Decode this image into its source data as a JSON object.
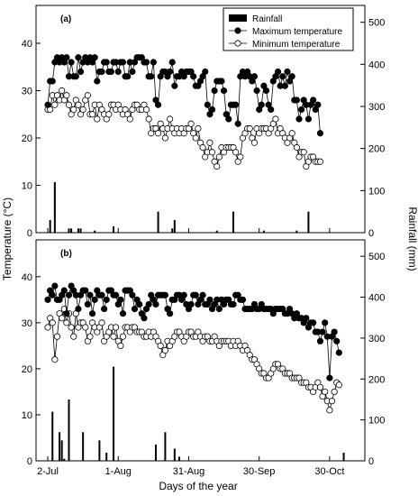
{
  "chart_data": {
    "type": "line",
    "shared_x": {
      "label": "Days of the year",
      "ticks": [
        "2-Jul",
        "1-Aug",
        "31-Aug",
        "30-Sep",
        "30-Oct"
      ],
      "tick_days": [
        0,
        30,
        60,
        90,
        120
      ],
      "range_days": [
        -5,
        135
      ]
    },
    "y_left": {
      "label": "Temperature (°C)",
      "range": [
        0,
        48
      ],
      "ticks": [
        0,
        10,
        20,
        30,
        40
      ]
    },
    "y_right": {
      "label": "Rainfall (mm)",
      "range": [
        0,
        540
      ],
      "ticks": [
        0,
        100,
        200,
        300,
        400,
        500
      ]
    },
    "legend": {
      "placement": "top-right",
      "entries": [
        {
          "name": "Rainfall",
          "marker": "bar"
        },
        {
          "name": "Maximum temperature",
          "marker": "filled-circle"
        },
        {
          "name": "Minimum temperature",
          "marker": "open-circle"
        }
      ]
    },
    "panels": [
      {
        "label": "(a)",
        "series": [
          {
            "name": "Maximum temperature",
            "values": [
              27.0,
              32.0,
              32.0,
              36.0,
              37.0,
              36.0,
              37.0,
              36.0,
              37.0,
              33.0,
              36.0,
              33.0,
              33.0,
              37.0,
              34.0,
              36.0,
              37.0,
              36.0,
              37.0,
              36.0,
              37.0,
              32.0,
              34.0,
              34.0,
              36.0,
              36.0,
              34.0,
              34.0,
              36.0,
              36.0,
              34.0,
              36.0,
              36.0,
              33.0,
              33.0,
              36.0,
              34.0,
              36.0,
              37.0,
              37.0,
              37.0,
              36.0,
              36.0,
              33.0,
              33.0,
              36.0,
              28.0,
              27.0,
              33.0,
              34.0,
              34.0,
              33.0,
              34.0,
              36.0,
              31.0,
              33.0,
              33.0,
              34.0,
              33.0,
              34.0,
              34.0,
              34.0,
              33.0,
              31.0,
              31.0,
              32.0,
              33.0,
              34.0,
              27.0,
              25.0,
              26.0,
              30.0,
              32.0,
              32.0,
              32.0,
              30.0,
              25.0,
              24.0,
              27.0,
              27.0,
              27.0,
              23.0,
              33.0,
              34.0,
              33.0,
              34.0,
              33.0,
              32.0,
              33.0,
              30.0,
              26.0,
              27.0,
              31.0,
              30.0,
              27.0,
              26.0,
              32.0,
              33.0,
              34.0,
              31.0,
              33.0,
              31.0,
              34.0,
              32.0,
              33.0,
              28.0,
              28.0,
              24.0,
              26.0,
              28.0,
              27.0,
              24.0,
              27.0,
              28.0,
              26.0,
              27.0,
              21.0
            ]
          },
          {
            "name": "Minimum temperature",
            "values": [
              26.0,
              26.0,
              29.0,
              27.0,
              29.0,
              28.0,
              30.0,
              28.0,
              29.0,
              27.0,
              25.0,
              26.0,
              28.0,
              27.0,
              25.0,
              26.0,
              28.0,
              29.0,
              25.0,
              25.0,
              27.0,
              24.0,
              27.0,
              26.0,
              25.0,
              24.0,
              25.0,
              27.0,
              27.0,
              26.0,
              27.0,
              26.0,
              25.0,
              26.0,
              25.0,
              24.0,
              26.0,
              27.0,
              27.0,
              26.0,
              26.0,
              27.0,
              26.0,
              24.0,
              21.0,
              22.0,
              22.0,
              21.0,
              23.0,
              22.0,
              20.0,
              22.0,
              24.0,
              22.0,
              21.0,
              22.0,
              21.0,
              22.0,
              21.0,
              22.0,
              22.0,
              23.0,
              21.0,
              20.0,
              22.0,
              19.0,
              18.0,
              16.0,
              17.0,
              19.0,
              17.0,
              15.0,
              14.0,
              16.0,
              18.0,
              17.0,
              18.0,
              18.0,
              18.0,
              18.0,
              17.0,
              15.0,
              16.0,
              20.0,
              21.0,
              22.0,
              22.0,
              20.0,
              19.0,
              22.0,
              21.0,
              22.0,
              22.0,
              22.0,
              21.0,
              22.0,
              23.0,
              24.0,
              21.0,
              22.0,
              21.0,
              20.0,
              19.0,
              20.0,
              21.0,
              19.0,
              18.0,
              16.0,
              17.0,
              17.0,
              14.0,
              15.0,
              16.0,
              16.0,
              15.0,
              15.0,
              15.0
            ]
          },
          {
            "name": "Rainfall",
            "bars": [
              {
                "day": 1,
                "value": 30
              },
              {
                "day": 3,
                "value": 120
              },
              {
                "day": 9,
                "value": 10
              },
              {
                "day": 10,
                "value": 10
              },
              {
                "day": 13,
                "value": 10
              },
              {
                "day": 14,
                "value": 10
              },
              {
                "day": 20,
                "value": 5
              },
              {
                "day": 28,
                "value": 15
              },
              {
                "day": 47,
                "value": 50
              },
              {
                "day": 53,
                "value": 10
              },
              {
                "day": 54,
                "value": 30
              },
              {
                "day": 72,
                "value": 5
              },
              {
                "day": 79,
                "value": 50
              },
              {
                "day": 92,
                "value": 5
              },
              {
                "day": 106,
                "value": 5
              },
              {
                "day": 111,
                "value": 50
              }
            ]
          }
        ]
      },
      {
        "label": "(b)",
        "series": [
          {
            "name": "Maximum temperature",
            "values": [
              35.0,
              37.0,
              36.0,
              38.0,
              35.0,
              35.0,
              36.0,
              37.0,
              32.0,
              36.0,
              38.0,
              37.0,
              36.0,
              33.0,
              36.0,
              37.0,
              37.0,
              34.0,
              36.0,
              32.0,
              35.0,
              37.0,
              36.0,
              36.0,
              33.0,
              35.0,
              37.0,
              37.0,
              36.0,
              36.0,
              34.0,
              35.0,
              32.0,
              37.0,
              37.0,
              37.0,
              36.0,
              33.0,
              35.0,
              34.0,
              32.0,
              31.0,
              33.0,
              34.0,
              36.0,
              35.0,
              34.0,
              36.0,
              36.0,
              36.0,
              36.0,
              33.0,
              32.0,
              35.0,
              35.0,
              36.0,
              36.0,
              35.0,
              36.0,
              34.0,
              33.0,
              34.0,
              36.0,
              36.0,
              34.0,
              35.0,
              36.0,
              34.0,
              34.0,
              35.0,
              33.0,
              34.0,
              35.0,
              33.0,
              35.0,
              34.0,
              35.0,
              35.0,
              34.0,
              34.0,
              36.0,
              36.0,
              35.0,
              35.0,
              33.0,
              33.0,
              33.0,
              33.0,
              34.0,
              33.0,
              33.0,
              34.0,
              33.0,
              33.0,
              33.0,
              33.0,
              32.0,
              33.0,
              33.0,
              33.0,
              33.0,
              32.0,
              32.0,
              33.0,
              32.0,
              31.0,
              32.0,
              31.0,
              31.0,
              30.0,
              31.0,
              29.0,
              30.0,
              30.0,
              28.0,
              28.0,
              26.0,
              28.0,
              30.0,
              27.0,
              18.0,
              27.0,
              28.0,
              26.0,
              23.5
            ]
          },
          {
            "name": "Minimum temperature",
            "values": [
              29.0,
              31.0,
              30.0,
              22.0,
              27.0,
              32.0,
              31.0,
              33.0,
              30.0,
              32.0,
              29.0,
              27.0,
              32.0,
              29.0,
              30.0,
              30.0,
              29.0,
              26.0,
              27.0,
              30.0,
              29.0,
              28.0,
              29.0,
              30.0,
              26.0,
              27.0,
              28.0,
              29.0,
              27.0,
              29.0,
              26.0,
              25.0,
              27.0,
              29.0,
              29.0,
              28.0,
              29.0,
              29.0,
              28.0,
              28.0,
              28.0,
              27.0,
              27.0,
              28.0,
              27.0,
              28.0,
              27.0,
              26.0,
              25.0,
              23.0,
              24.0,
              26.0,
              25.0,
              26.0,
              27.0,
              28.0,
              28.0,
              27.0,
              26.0,
              27.0,
              28.0,
              28.0,
              27.0,
              27.0,
              28.0,
              27.0,
              26.0,
              27.0,
              27.0,
              26.0,
              26.0,
              27.0,
              26.0,
              25.0,
              26.0,
              26.0,
              26.0,
              26.0,
              25.0,
              26.0,
              25.0,
              26.0,
              25.0,
              24.0,
              25.0,
              24.0,
              23.0,
              22.0,
              22.0,
              21.0,
              20.0,
              19.0,
              19.0,
              18.0,
              18.0,
              19.0,
              20.0,
              21.0,
              21.0,
              20.0,
              20.0,
              19.0,
              19.0,
              19.0,
              18.0,
              18.0,
              18.0,
              18.0,
              17.0,
              17.0,
              17.0,
              16.0,
              16.0,
              15.0,
              16.0,
              17.0,
              16.0,
              14.0,
              15.0,
              13.0,
              11.0,
              13.0,
              15.0,
              17.0,
              16.5
            ]
          },
          {
            "name": "Rainfall",
            "bars": [
              {
                "day": 2,
                "value": 120
              },
              {
                "day": 5,
                "value": 70
              },
              {
                "day": 6,
                "value": 50
              },
              {
                "day": 7,
                "value": 5
              },
              {
                "day": 9,
                "value": 150
              },
              {
                "day": 15,
                "value": 70
              },
              {
                "day": 22,
                "value": 50
              },
              {
                "day": 25,
                "value": 20
              },
              {
                "day": 28,
                "value": 230
              },
              {
                "day": 46,
                "value": 40
              },
              {
                "day": 50,
                "value": 70
              },
              {
                "day": 54,
                "value": 30
              },
              {
                "day": 56,
                "value": 10
              },
              {
                "day": 126,
                "value": 20
              }
            ]
          }
        ]
      }
    ]
  }
}
